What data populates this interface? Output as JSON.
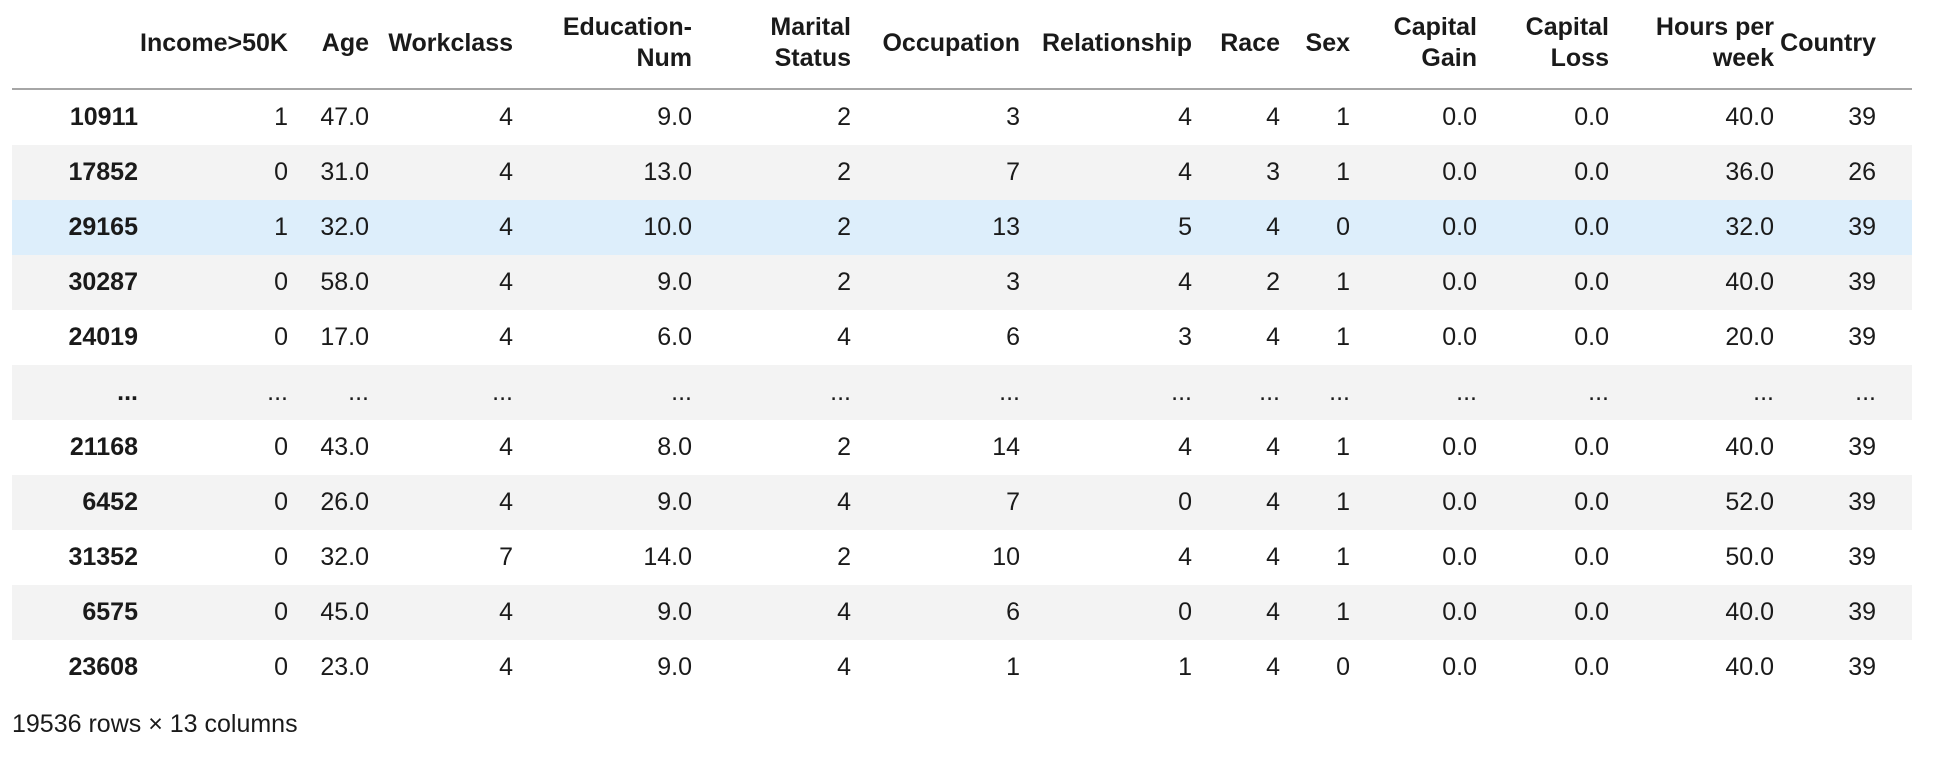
{
  "table": {
    "index_header": "",
    "columns": [
      "Income>50K",
      "Age",
      "Workclass",
      "Education-Num",
      "Marital Status",
      "Occupation",
      "Relationship",
      "Race",
      "Sex",
      "Capital Gain",
      "Capital Loss",
      "Hours per week",
      "Country"
    ],
    "rows": [
      {
        "index": "10911",
        "highlighted": false,
        "values": [
          "1",
          "47.0",
          "4",
          "9.0",
          "2",
          "3",
          "4",
          "4",
          "1",
          "0.0",
          "0.0",
          "40.0",
          "39"
        ]
      },
      {
        "index": "17852",
        "highlighted": false,
        "values": [
          "0",
          "31.0",
          "4",
          "13.0",
          "2",
          "7",
          "4",
          "3",
          "1",
          "0.0",
          "0.0",
          "36.0",
          "26"
        ]
      },
      {
        "index": "29165",
        "highlighted": true,
        "values": [
          "1",
          "32.0",
          "4",
          "10.0",
          "2",
          "13",
          "5",
          "4",
          "0",
          "0.0",
          "0.0",
          "32.0",
          "39"
        ]
      },
      {
        "index": "30287",
        "highlighted": false,
        "values": [
          "0",
          "58.0",
          "4",
          "9.0",
          "2",
          "3",
          "4",
          "2",
          "1",
          "0.0",
          "0.0",
          "40.0",
          "39"
        ]
      },
      {
        "index": "24019",
        "highlighted": false,
        "values": [
          "0",
          "17.0",
          "4",
          "6.0",
          "4",
          "6",
          "3",
          "4",
          "1",
          "0.0",
          "0.0",
          "20.0",
          "39"
        ]
      },
      {
        "index": "...",
        "highlighted": false,
        "values": [
          "...",
          "...",
          "...",
          "...",
          "...",
          "...",
          "...",
          "...",
          "...",
          "...",
          "...",
          "...",
          "..."
        ]
      },
      {
        "index": "21168",
        "highlighted": false,
        "values": [
          "0",
          "43.0",
          "4",
          "8.0",
          "2",
          "14",
          "4",
          "4",
          "1",
          "0.0",
          "0.0",
          "40.0",
          "39"
        ]
      },
      {
        "index": "6452",
        "highlighted": false,
        "values": [
          "0",
          "26.0",
          "4",
          "9.0",
          "4",
          "7",
          "0",
          "4",
          "1",
          "0.0",
          "0.0",
          "52.0",
          "39"
        ]
      },
      {
        "index": "31352",
        "highlighted": false,
        "values": [
          "0",
          "32.0",
          "7",
          "14.0",
          "2",
          "10",
          "4",
          "4",
          "1",
          "0.0",
          "0.0",
          "50.0",
          "39"
        ]
      },
      {
        "index": "6575",
        "highlighted": false,
        "values": [
          "0",
          "45.0",
          "4",
          "9.0",
          "4",
          "6",
          "0",
          "4",
          "1",
          "0.0",
          "0.0",
          "40.0",
          "39"
        ]
      },
      {
        "index": "23608",
        "highlighted": false,
        "values": [
          "0",
          "23.0",
          "4",
          "9.0",
          "4",
          "1",
          "1",
          "4",
          "0",
          "0.0",
          "0.0",
          "40.0",
          "39"
        ]
      }
    ]
  },
  "footer": {
    "summary": "19536 rows × 13 columns"
  },
  "colors": {
    "text": "#1a1a1a",
    "stripe": "#f3f3f3",
    "highlight": "#ddeefb",
    "header_border": "#a6a6a6"
  }
}
